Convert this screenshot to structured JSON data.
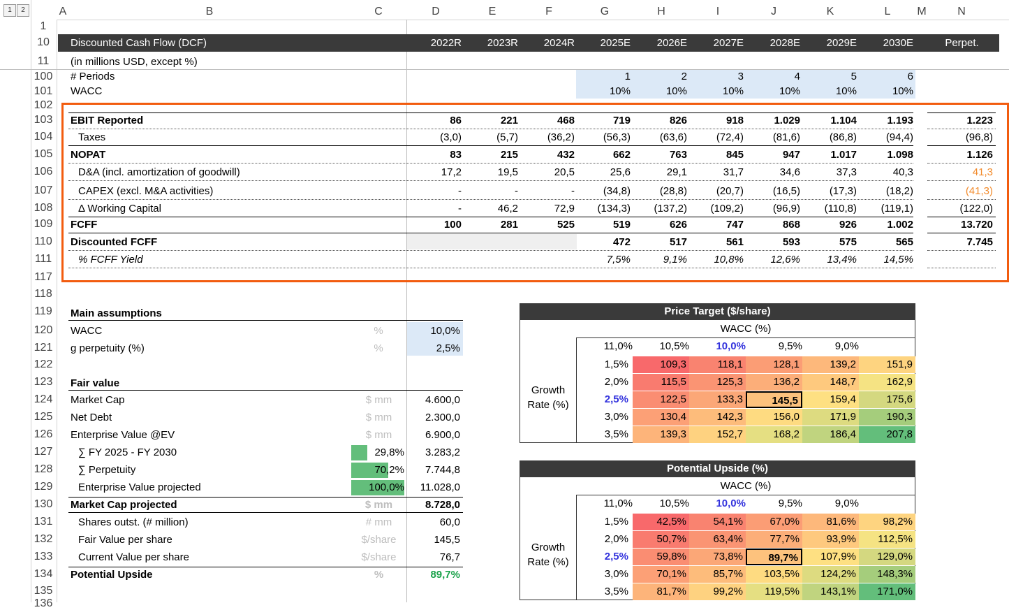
{
  "colors": {
    "header_bar": "#3a3a3a",
    "input_fill": "#dce9f7",
    "highlight_border": "#f25c0f",
    "orange_value": "#f28a2a",
    "blue_value": "#3333dd",
    "green_value": "#1aa24a",
    "bar_green": "#63be7b"
  },
  "outline_levels": [
    "1",
    "2"
  ],
  "columns": [
    "A",
    "B",
    "C",
    "D",
    "E",
    "F",
    "G",
    "H",
    "I",
    "J",
    "K",
    "L",
    "M",
    "N"
  ],
  "rows": [
    "1",
    "10",
    "11",
    "100",
    "101",
    "102",
    "103",
    "104",
    "105",
    "106",
    "107",
    "108",
    "109",
    "110",
    "111",
    "117",
    "118",
    "119",
    "120",
    "121",
    "122",
    "123",
    "124",
    "125",
    "126",
    "127",
    "128",
    "129",
    "130",
    "131",
    "132",
    "133",
    "134",
    "135",
    "136"
  ],
  "dcf": {
    "title": "Discounted Cash Flow (DCF)",
    "years": [
      "2022R",
      "2023R",
      "2024R",
      "2025E",
      "2026E",
      "2027E",
      "2028E",
      "2029E",
      "2030E"
    ],
    "perp_label": "Perpet.",
    "subtitle": "(in millions USD, except %)",
    "periods_label": "# Periods",
    "periods": [
      "1",
      "2",
      "3",
      "4",
      "5",
      "6"
    ],
    "wacc_label": "WACC",
    "wacc_values": [
      "10%",
      "10%",
      "10%",
      "10%",
      "10%",
      "10%"
    ],
    "lines": [
      {
        "label": "EBIT Reported",
        "bold": true,
        "vals": [
          "86",
          "221",
          "468",
          "719",
          "826",
          "918",
          "1.029",
          "1.104",
          "1.193"
        ],
        "perp": "1.223"
      },
      {
        "label": "Taxes",
        "bold": false,
        "vals": [
          "(3,0)",
          "(5,7)",
          "(36,2)",
          "(56,3)",
          "(63,6)",
          "(72,4)",
          "(81,6)",
          "(86,8)",
          "(94,4)"
        ],
        "perp": "(96,8)"
      },
      {
        "label": "NOPAT",
        "bold": true,
        "vals": [
          "83",
          "215",
          "432",
          "662",
          "763",
          "845",
          "947",
          "1.017",
          "1.098"
        ],
        "perp": "1.126"
      },
      {
        "label": "D&A (incl. amortization of goodwill)",
        "bold": false,
        "vals": [
          "17,2",
          "19,5",
          "20,5",
          "25,6",
          "29,1",
          "31,7",
          "34,6",
          "37,3",
          "40,3"
        ],
        "perp": "41,3"
      },
      {
        "label": "CAPEX (excl. M&A activities)",
        "bold": false,
        "vals": [
          "-",
          "-",
          "-",
          "(34,8)",
          "(28,8)",
          "(20,7)",
          "(16,5)",
          "(17,3)",
          "(18,2)"
        ],
        "perp": "(41,3)"
      },
      {
        "label": "Δ Working Capital",
        "bold": false,
        "vals": [
          "-",
          "46,2",
          "72,9",
          "(134,3)",
          "(137,2)",
          "(109,2)",
          "(96,9)",
          "(110,8)",
          "(119,1)"
        ],
        "perp": "(122,0)"
      },
      {
        "label": "FCFF",
        "bold": true,
        "vals": [
          "100",
          "281",
          "525",
          "519",
          "626",
          "747",
          "868",
          "926",
          "1.002"
        ],
        "perp": "13.720"
      },
      {
        "label": "Discounted FCFF",
        "bold": true,
        "vals": [
          "",
          "",
          "",
          "472",
          "517",
          "561",
          "593",
          "575",
          "565"
        ],
        "perp": "7.745"
      },
      {
        "label": "% FCFF Yield",
        "bold": false,
        "vals": [
          "",
          "",
          "",
          "7,5%",
          "9,1%",
          "10,8%",
          "12,6%",
          "13,4%",
          "14,5%"
        ],
        "perp": ""
      }
    ]
  },
  "assumptions": {
    "title": "Main assumptions",
    "rows": [
      {
        "label": "WACC",
        "unit": "%",
        "value": "10,0%"
      },
      {
        "label": "g perpetuity (%)",
        "unit": "%",
        "value": "2,5%"
      }
    ]
  },
  "fair_value": {
    "title": "Fair value",
    "rows": [
      {
        "label": "Market Cap",
        "unit": "$ mm",
        "pct": "",
        "value": "4.600,0",
        "bold": false,
        "indent": false
      },
      {
        "label": "Net Debt",
        "unit": "$ mm",
        "pct": "",
        "value": "2.300,0",
        "bold": false,
        "indent": false
      },
      {
        "label": "Enterprise Value @EV",
        "unit": "$ mm",
        "pct": "",
        "value": "6.900,0",
        "bold": false,
        "indent": false
      },
      {
        "label": "∑ FY 2025 - FY 2030",
        "unit": "",
        "pct": "29,8%",
        "pct_fill": 0.298,
        "value": "3.283,2",
        "bold": false,
        "indent": true
      },
      {
        "label": "∑ Perpetuity",
        "unit": "",
        "pct": "70,2%",
        "pct_fill": 0.702,
        "value": "7.744,8",
        "bold": false,
        "indent": true
      },
      {
        "label": "Enterprise Value projected",
        "unit": "",
        "pct": "100,0%",
        "pct_fill": 1.0,
        "value": "11.028,0",
        "bold": false,
        "indent": true
      },
      {
        "label": "Market Cap projected",
        "unit": "$ mm",
        "pct": "",
        "value": "8.728,0",
        "bold": true,
        "indent": false
      },
      {
        "label": "Shares outst. (# million)",
        "unit": "# mm",
        "pct": "",
        "value": "60,0",
        "bold": false,
        "indent": true
      },
      {
        "label": "Fair Value per share",
        "unit": "$/share",
        "pct": "",
        "value": "145,5",
        "bold": false,
        "indent": true
      },
      {
        "label": "Current Value per share",
        "unit": "$/share",
        "pct": "",
        "value": "76,7",
        "bold": false,
        "indent": true
      },
      {
        "label": "Potential Upside",
        "unit": "%",
        "pct": "",
        "value": "89,7%",
        "bold": true,
        "indent": false
      }
    ]
  },
  "price_target": {
    "title": "Price Target ($/share)",
    "wacc_label": "WACC (%)",
    "growth_label_1": "Growth",
    "growth_label_2": "Rate (%)",
    "wacc_cols": [
      "11,0%",
      "10,5%",
      "10,0%",
      "9,5%",
      "9,0%"
    ],
    "growth_rows": [
      "1,5%",
      "2,0%",
      "2,5%",
      "3,0%",
      "3,5%"
    ],
    "values": [
      [
        "109,3",
        "118,1",
        "128,1",
        "139,2",
        "151,9"
      ],
      [
        "115,5",
        "125,3",
        "136,2",
        "148,7",
        "162,9"
      ],
      [
        "122,5",
        "133,3",
        "145,5",
        "159,4",
        "175,6"
      ],
      [
        "130,4",
        "142,3",
        "156,0",
        "171,9",
        "190,3"
      ],
      [
        "139,3",
        "152,7",
        "168,2",
        "186,4",
        "207,8"
      ]
    ],
    "colors": [
      [
        "#f8696b",
        "#f98370",
        "#fb9d75",
        "#fdb87b",
        "#fed480"
      ],
      [
        "#f97b6f",
        "#fa9473",
        "#fcae79",
        "#fec97e",
        "#f5e383"
      ],
      [
        "#fa8d72",
        "#fba777",
        "#fdc27d",
        "#fee082",
        "#d4d880"
      ],
      [
        "#fca076",
        "#fdbc7b",
        "#fedb81",
        "#dddb80",
        "#a5cd7c"
      ],
      [
        "#fdb47a",
        "#fed280",
        "#e5df82",
        "#c0d47f",
        "#63be7b"
      ]
    ]
  },
  "upside": {
    "title": "Potential Upside (%)",
    "wacc_label": "WACC (%)",
    "growth_label_1": "Growth",
    "growth_label_2": "Rate (%)",
    "wacc_cols": [
      "11,0%",
      "10,5%",
      "10,0%",
      "9,5%",
      "9,0%"
    ],
    "growth_rows": [
      "1,5%",
      "2,0%",
      "2,5%",
      "3,0%",
      "3,5%"
    ],
    "values": [
      [
        "42,5%",
        "54,1%",
        "67,0%",
        "81,6%",
        "98,2%"
      ],
      [
        "50,7%",
        "63,4%",
        "77,7%",
        "93,9%",
        "112,5%"
      ],
      [
        "59,8%",
        "73,8%",
        "89,7%",
        "107,9%",
        "129,0%"
      ],
      [
        "70,1%",
        "85,7%",
        "103,5%",
        "124,2%",
        "148,3%"
      ],
      [
        "81,7%",
        "99,2%",
        "119,5%",
        "143,1%",
        "171,0%"
      ]
    ],
    "colors": [
      [
        "#f8696b",
        "#f98370",
        "#fb9d75",
        "#fdb87b",
        "#fed480"
      ],
      [
        "#f97b6f",
        "#fa9473",
        "#fcae79",
        "#fec97e",
        "#f5e383"
      ],
      [
        "#fa8d72",
        "#fba777",
        "#fdc27d",
        "#fee082",
        "#d4d880"
      ],
      [
        "#fca076",
        "#fdbc7b",
        "#fedb81",
        "#dddb80",
        "#a5cd7c"
      ],
      [
        "#fdb47a",
        "#fed280",
        "#e5df82",
        "#c0d47f",
        "#63be7b"
      ]
    ]
  }
}
